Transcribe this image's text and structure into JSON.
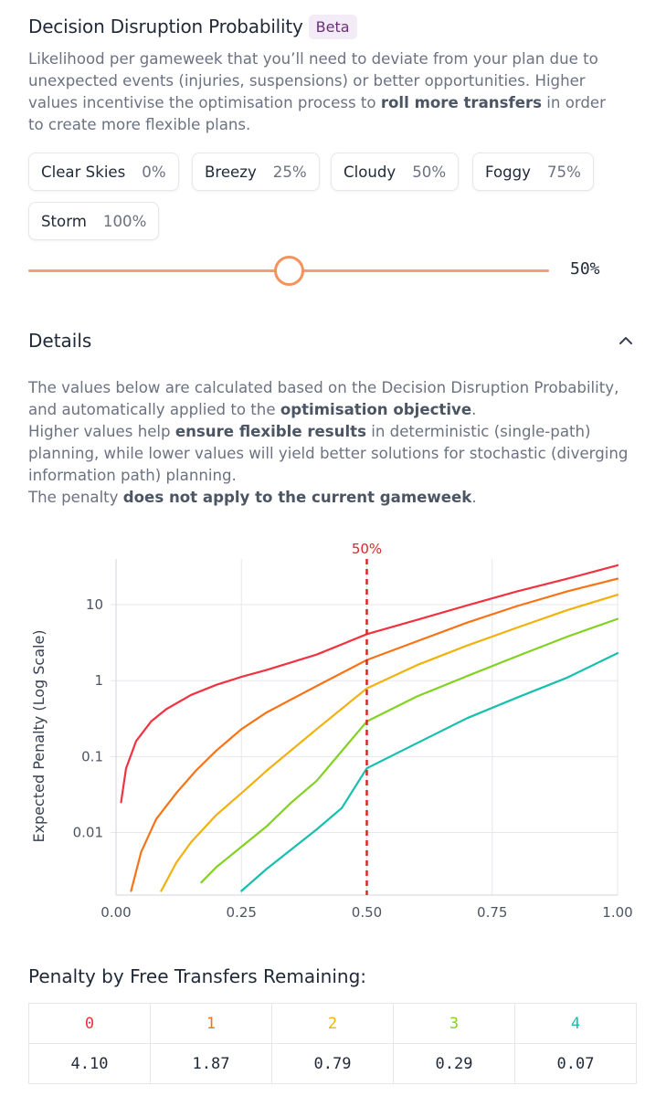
{
  "header": {
    "title": "Decision Disruption Probability",
    "badge": "Beta",
    "description_parts": [
      "Likelihood per gameweek that you’ll need to deviate from your plan due to unexpected events (injuries, suspensions) or better opportunities. Higher values incentivise the optimisation process to ",
      "roll more transfers",
      " in order to create more flexible plans."
    ]
  },
  "presets": [
    {
      "name": "Clear Skies",
      "value": "0%"
    },
    {
      "name": "Breezy",
      "value": "25%"
    },
    {
      "name": "Cloudy",
      "value": "50%"
    },
    {
      "name": "Foggy",
      "value": "75%"
    },
    {
      "name": "Storm",
      "value": "100%"
    }
  ],
  "slider": {
    "value": 0.5,
    "value_label": "50%"
  },
  "details": {
    "title": "Details",
    "text_parts": [
      "The values below are calculated based on the Decision Disruption Probability, and automatically applied to the ",
      "optimisation objective",
      ".",
      "Higher values help ",
      "ensure flexible results",
      " in deterministic (single-path) planning, while lower values will yield better solutions for stochastic (diverging information path) planning.",
      "The penalty ",
      "does not apply to the current gameweek",
      "."
    ]
  },
  "colors": {
    "ft0": "#ef3340",
    "ft1": "#f77315",
    "ft2": "#f2b10b",
    "ft3": "#83d123",
    "ft4": "#17bfae",
    "marker": "#dc2626",
    "slider": "#f59d72"
  },
  "chart_data": {
    "type": "line",
    "ylabel": "Expected Penalty (Log Scale)",
    "xlabel": "",
    "yscale": "log",
    "xlim": [
      0,
      1
    ],
    "ylim": [
      0.0015,
      40
    ],
    "x_ticks": [
      "0.00",
      "0.25",
      "0.50",
      "0.75",
      "1.00"
    ],
    "y_ticks": [
      "0.01",
      "0.1",
      "1",
      "10"
    ],
    "grid": true,
    "marker": {
      "x": 0.5,
      "label": "50%"
    },
    "series": [
      {
        "key": "ft0",
        "x": [
          0.01,
          0.02,
          0.04,
          0.07,
          0.1,
          0.15,
          0.2,
          0.25,
          0.3,
          0.4,
          0.5,
          0.6,
          0.7,
          0.8,
          0.9,
          1.0
        ],
        "y": [
          0.025,
          0.07,
          0.16,
          0.29,
          0.42,
          0.65,
          0.88,
          1.12,
          1.38,
          2.2,
          4.1,
          6.3,
          9.8,
          15.0,
          22.0,
          33.0
        ]
      },
      {
        "key": "ft1",
        "x": [
          0.03,
          0.05,
          0.08,
          0.12,
          0.16,
          0.2,
          0.25,
          0.3,
          0.4,
          0.5,
          0.6,
          0.7,
          0.8,
          0.9,
          1.0
        ],
        "y": [
          0.0017,
          0.0055,
          0.015,
          0.033,
          0.066,
          0.12,
          0.23,
          0.38,
          0.85,
          1.87,
          3.3,
          5.8,
          9.6,
          15.0,
          22.0
        ]
      },
      {
        "key": "ft2",
        "x": [
          0.09,
          0.12,
          0.15,
          0.2,
          0.25,
          0.3,
          0.4,
          0.5,
          0.6,
          0.7,
          0.8,
          0.9,
          1.0
        ],
        "y": [
          0.0017,
          0.004,
          0.0075,
          0.017,
          0.033,
          0.065,
          0.23,
          0.79,
          1.6,
          2.9,
          5.0,
          8.5,
          13.5
        ]
      },
      {
        "key": "ft3",
        "x": [
          0.17,
          0.2,
          0.25,
          0.3,
          0.35,
          0.4,
          0.5,
          0.6,
          0.7,
          0.8,
          0.9,
          1.0
        ],
        "y": [
          0.0022,
          0.0035,
          0.0065,
          0.012,
          0.025,
          0.048,
          0.29,
          0.62,
          1.15,
          2.1,
          3.8,
          6.5
        ]
      },
      {
        "key": "ft4",
        "x": [
          0.25,
          0.3,
          0.35,
          0.4,
          0.45,
          0.5,
          0.6,
          0.7,
          0.8,
          0.9,
          1.0
        ],
        "y": [
          0.0017,
          0.0033,
          0.006,
          0.011,
          0.021,
          0.07,
          0.15,
          0.32,
          0.6,
          1.1,
          2.3
        ]
      }
    ]
  },
  "free_transfers": {
    "title": "Penalty by Free Transfers Remaining:",
    "columns": [
      "0",
      "1",
      "2",
      "3",
      "4"
    ],
    "values": [
      "4.10",
      "1.87",
      "0.79",
      "0.29",
      "0.07"
    ]
  }
}
